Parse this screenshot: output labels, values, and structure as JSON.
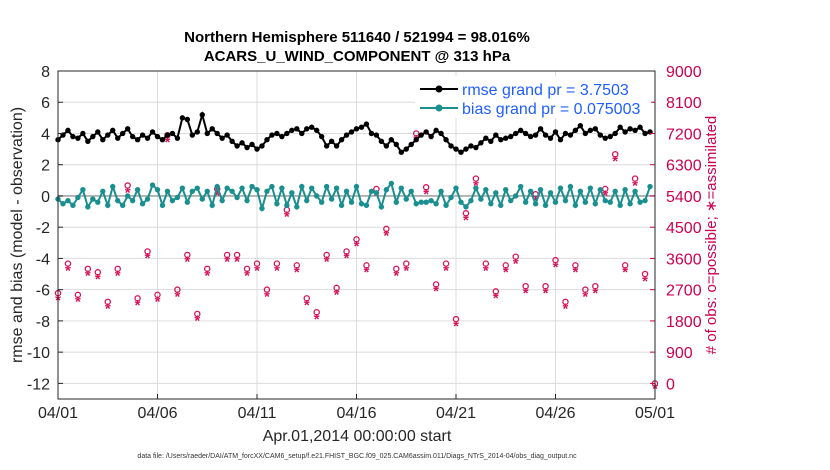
{
  "chart_data": {
    "type": "line",
    "title_line1": "Northern Hemisphere 511640 / 521994 = 98.016%",
    "title_line2": "ACARS_U_WIND_COMPONENT @ 313 hPa",
    "xlabel": "Apr.01,2014 00:00:00 start",
    "ylabel": "rmse and bias (model - observation)",
    "ylabel_right": "# of obs: o=possible; ∗=assimilated",
    "ylim": [
      -13,
      8
    ],
    "ylim_right": [
      -450,
      9000
    ],
    "xlim": [
      0,
      30
    ],
    "x_ticks": [
      0,
      5,
      10,
      15,
      20,
      25,
      30
    ],
    "x_tick_labels": [
      "04/01",
      "04/06",
      "04/11",
      "04/16",
      "04/21",
      "04/26",
      "05/01"
    ],
    "y_ticks": [
      8,
      6,
      4,
      2,
      0,
      -2,
      -4,
      -6,
      -8,
      -10,
      -12
    ],
    "y_tick_labels": [
      "8",
      "6",
      "4",
      "2",
      "0",
      "-2",
      "-4",
      "-6",
      "-8",
      "-10",
      "-12"
    ],
    "y_ticks_right": [
      9000,
      8100,
      7200,
      6300,
      5400,
      4500,
      3600,
      2700,
      1800,
      900,
      0
    ],
    "y_tick_labels_right": [
      "9000",
      "8100",
      "7200",
      "6300",
      "5400",
      "4500",
      "3600",
      "2700",
      "1800",
      "900",
      "0"
    ],
    "series": [
      {
        "name": "rmse grand pr = 3.7503",
        "color": "#000000",
        "x": [
          0,
          0.25,
          0.5,
          0.75,
          1,
          1.25,
          1.5,
          1.75,
          2,
          2.25,
          2.5,
          2.75,
          3,
          3.25,
          3.5,
          3.75,
          4,
          4.25,
          4.5,
          4.75,
          5,
          5.25,
          5.5,
          5.75,
          6,
          6.25,
          6.5,
          6.75,
          7,
          7.25,
          7.5,
          7.75,
          8,
          8.25,
          8.5,
          8.75,
          9,
          9.25,
          9.5,
          9.75,
          10,
          10.25,
          10.5,
          10.75,
          11,
          11.25,
          11.5,
          11.75,
          12,
          12.25,
          12.5,
          12.75,
          13,
          13.25,
          13.5,
          13.75,
          14,
          14.25,
          14.5,
          14.75,
          15,
          15.25,
          15.5,
          15.75,
          16,
          16.25,
          16.5,
          16.75,
          17,
          17.25,
          17.5,
          17.75,
          18,
          18.25,
          18.5,
          18.75,
          19,
          19.25,
          19.5,
          19.75,
          20,
          20.25,
          20.5,
          20.75,
          21,
          21.25,
          21.5,
          21.75,
          22,
          22.25,
          22.5,
          22.75,
          23,
          23.25,
          23.5,
          23.75,
          24,
          24.25,
          24.5,
          24.75,
          25,
          25.25,
          25.5,
          25.75,
          26,
          26.25,
          26.5,
          26.75,
          27,
          27.25,
          27.5,
          27.75,
          28,
          28.25,
          28.5,
          28.75,
          29,
          29.25,
          29.5,
          29.75
        ],
        "values": [
          3.6,
          3.9,
          4.2,
          3.8,
          3.7,
          4.0,
          3.5,
          3.8,
          4.1,
          3.6,
          3.9,
          4.2,
          3.7,
          4.0,
          4.3,
          3.8,
          3.6,
          3.9,
          3.7,
          4.1,
          3.8,
          3.6,
          3.9,
          4.0,
          3.7,
          5.0,
          4.9,
          3.9,
          4.1,
          5.2,
          4.0,
          4.3,
          4.0,
          3.7,
          3.9,
          3.5,
          3.2,
          3.4,
          3.1,
          3.3,
          3.0,
          3.2,
          3.6,
          3.9,
          4.0,
          3.8,
          4.0,
          4.2,
          4.3,
          4.0,
          4.3,
          4.4,
          4.2,
          3.8,
          3.2,
          3.5,
          3.2,
          3.6,
          3.9,
          4.1,
          4.3,
          4.4,
          4.6,
          4.0,
          3.9,
          3.5,
          3.2,
          3.6,
          3.3,
          2.8,
          3.0,
          3.3,
          3.6,
          3.9,
          4.1,
          3.8,
          4.2,
          4.0,
          3.6,
          3.2,
          3.0,
          2.8,
          3.0,
          3.2,
          3.1,
          3.4,
          3.7,
          3.5,
          3.9,
          3.6,
          3.7,
          3.8,
          4.0,
          4.2,
          4.0,
          3.8,
          3.9,
          4.3,
          3.9,
          3.7,
          4.1,
          3.6,
          4.0,
          3.9,
          4.2,
          4.5,
          4.0,
          4.2,
          4.3,
          3.9,
          3.7,
          3.8,
          4.0,
          4.4,
          4.1,
          4.3,
          4.2,
          4.4,
          4.0,
          4.1
        ]
      },
      {
        "name": "bias grand pr = 0.075003",
        "color": "#1a8f8f",
        "x": [
          0,
          0.25,
          0.5,
          0.75,
          1,
          1.25,
          1.5,
          1.75,
          2,
          2.25,
          2.5,
          2.75,
          3,
          3.25,
          3.5,
          3.75,
          4,
          4.25,
          4.5,
          4.75,
          5,
          5.25,
          5.5,
          5.75,
          6,
          6.25,
          6.5,
          6.75,
          7,
          7.25,
          7.5,
          7.75,
          8,
          8.25,
          8.5,
          8.75,
          9,
          9.25,
          9.5,
          9.75,
          10,
          10.25,
          10.5,
          10.75,
          11,
          11.25,
          11.5,
          11.75,
          12,
          12.25,
          12.5,
          12.75,
          13,
          13.25,
          13.5,
          13.75,
          14,
          14.25,
          14.5,
          14.75,
          15,
          15.25,
          15.5,
          15.75,
          16,
          16.25,
          16.5,
          16.75,
          17,
          17.25,
          17.5,
          17.75,
          18,
          18.25,
          18.5,
          18.75,
          19,
          19.25,
          19.5,
          19.75,
          20,
          20.25,
          20.5,
          20.75,
          21,
          21.25,
          21.5,
          21.75,
          22,
          22.25,
          22.5,
          22.75,
          23,
          23.25,
          23.5,
          23.75,
          24,
          24.25,
          24.5,
          24.75,
          25,
          25.25,
          25.5,
          25.75,
          26,
          26.25,
          26.5,
          26.75,
          27,
          27.25,
          27.5,
          27.75,
          28,
          28.25,
          28.5,
          28.75,
          29,
          29.25,
          29.5,
          29.75
        ],
        "values": [
          -0.2,
          -0.5,
          -0.3,
          -0.6,
          -0.1,
          0.4,
          -0.7,
          -0.2,
          -0.4,
          0.3,
          -0.6,
          0.6,
          -0.3,
          -0.6,
          0.0,
          -0.3,
          0.4,
          -0.5,
          -0.2,
          0.7,
          0.4,
          -0.6,
          0.3,
          -0.3,
          -0.1,
          0.5,
          -0.4,
          0.3,
          0.5,
          -0.2,
          0.3,
          -0.6,
          0.6,
          -0.3,
          0.5,
          0.3,
          -0.1,
          0.5,
          -0.3,
          0.6,
          0.4,
          -0.8,
          0.3,
          0.6,
          -0.5,
          0.5,
          -0.6,
          0.2,
          -0.7,
          0.6,
          -0.3,
          0.5,
          0.0,
          -0.4,
          0.6,
          -0.2,
          0.5,
          -0.6,
          0.3,
          -0.4,
          0.6,
          -0.5,
          -0.6,
          0.3,
          0.2,
          -0.7,
          0.4,
          0.8,
          -0.4,
          0.5,
          -0.2,
          0.3,
          -0.5,
          -0.4,
          -0.4,
          -0.3,
          -0.5,
          0.3,
          -0.6,
          -0.1,
          0.5,
          -0.4,
          -0.7,
          -0.3,
          0.5,
          -0.2,
          0.4,
          -0.5,
          0.2,
          -0.6,
          0.4,
          -0.3,
          0.0,
          0.6,
          -0.4,
          0.3,
          -0.5,
          0.4,
          -0.6,
          0.2,
          -0.4,
          0.5,
          -0.3,
          0.6,
          -0.6,
          0.3,
          -0.4,
          0.5,
          -0.5,
          0.4,
          -0.3,
          -0.4,
          0.3,
          -0.6,
          0.4,
          -0.5,
          0.3,
          -0.4,
          -0.3,
          0.6
        ]
      }
    ],
    "obs_counts": {
      "color": "#d6145a",
      "x": [
        0,
        0.5,
        1,
        1.5,
        2,
        2.5,
        3,
        3.5,
        4,
        4.5,
        5,
        5.5,
        6,
        6.5,
        7,
        7.5,
        8,
        8.5,
        9,
        9.5,
        10,
        10.5,
        11,
        11.5,
        12,
        12.5,
        13,
        13.5,
        14,
        14.5,
        15,
        15.5,
        16,
        16.5,
        17,
        17.5,
        18,
        18.5,
        19,
        19.5,
        20,
        20.5,
        21,
        21.5,
        22,
        22.5,
        23,
        23.5,
        24,
        24.5,
        25,
        25.5,
        26,
        26.5,
        27,
        27.5,
        28,
        28.5,
        29,
        29.5,
        30
      ],
      "possible": [
        2600,
        3450,
        2550,
        3300,
        3200,
        2350,
        3300,
        5700,
        2450,
        3800,
        2550,
        7150,
        2700,
        3700,
        2000,
        3300,
        5600,
        3700,
        3700,
        3300,
        3450,
        2700,
        3450,
        5000,
        3400,
        2450,
        2050,
        3700,
        2750,
        3800,
        4150,
        3400,
        5600,
        4450,
        3300,
        3450,
        7200,
        5650,
        2850,
        3450,
        1850,
        4900,
        5900,
        3450,
        2650,
        3400,
        3650,
        2800,
        5450,
        2800,
        3550,
        2350,
        3400,
        2700,
        2800,
        5600,
        6600,
        3400,
        5900,
        3150,
        0
      ],
      "assimilated": [
        2550,
        3400,
        2500,
        3250,
        3150,
        2300,
        3250,
        5650,
        2400,
        3750,
        2500,
        7100,
        2650,
        3650,
        1950,
        3250,
        5550,
        3650,
        3650,
        3250,
        3400,
        2650,
        3400,
        4950,
        3350,
        2400,
        2000,
        3650,
        2700,
        3750,
        4100,
        3350,
        5550,
        4400,
        3250,
        3400,
        7150,
        5600,
        2800,
        3400,
        1800,
        4850,
        5850,
        3400,
        2600,
        3350,
        3600,
        2750,
        5400,
        2750,
        3500,
        2300,
        3350,
        2650,
        2750,
        5550,
        6550,
        3350,
        5850,
        3100,
        0
      ]
    },
    "legend": [
      "rmse grand pr = 3.7503",
      "bias grand pr = 0.075003"
    ],
    "legend_position": "top-right",
    "grid": true
  },
  "footer": "data file: /Users/raeder/DAI/ATM_forcXX/CAM6_setup/f.e21.FHIST_BGC.f09_025.CAM6assim.011/Diags_NTrS_2014-04/obs_diag_output.nc"
}
